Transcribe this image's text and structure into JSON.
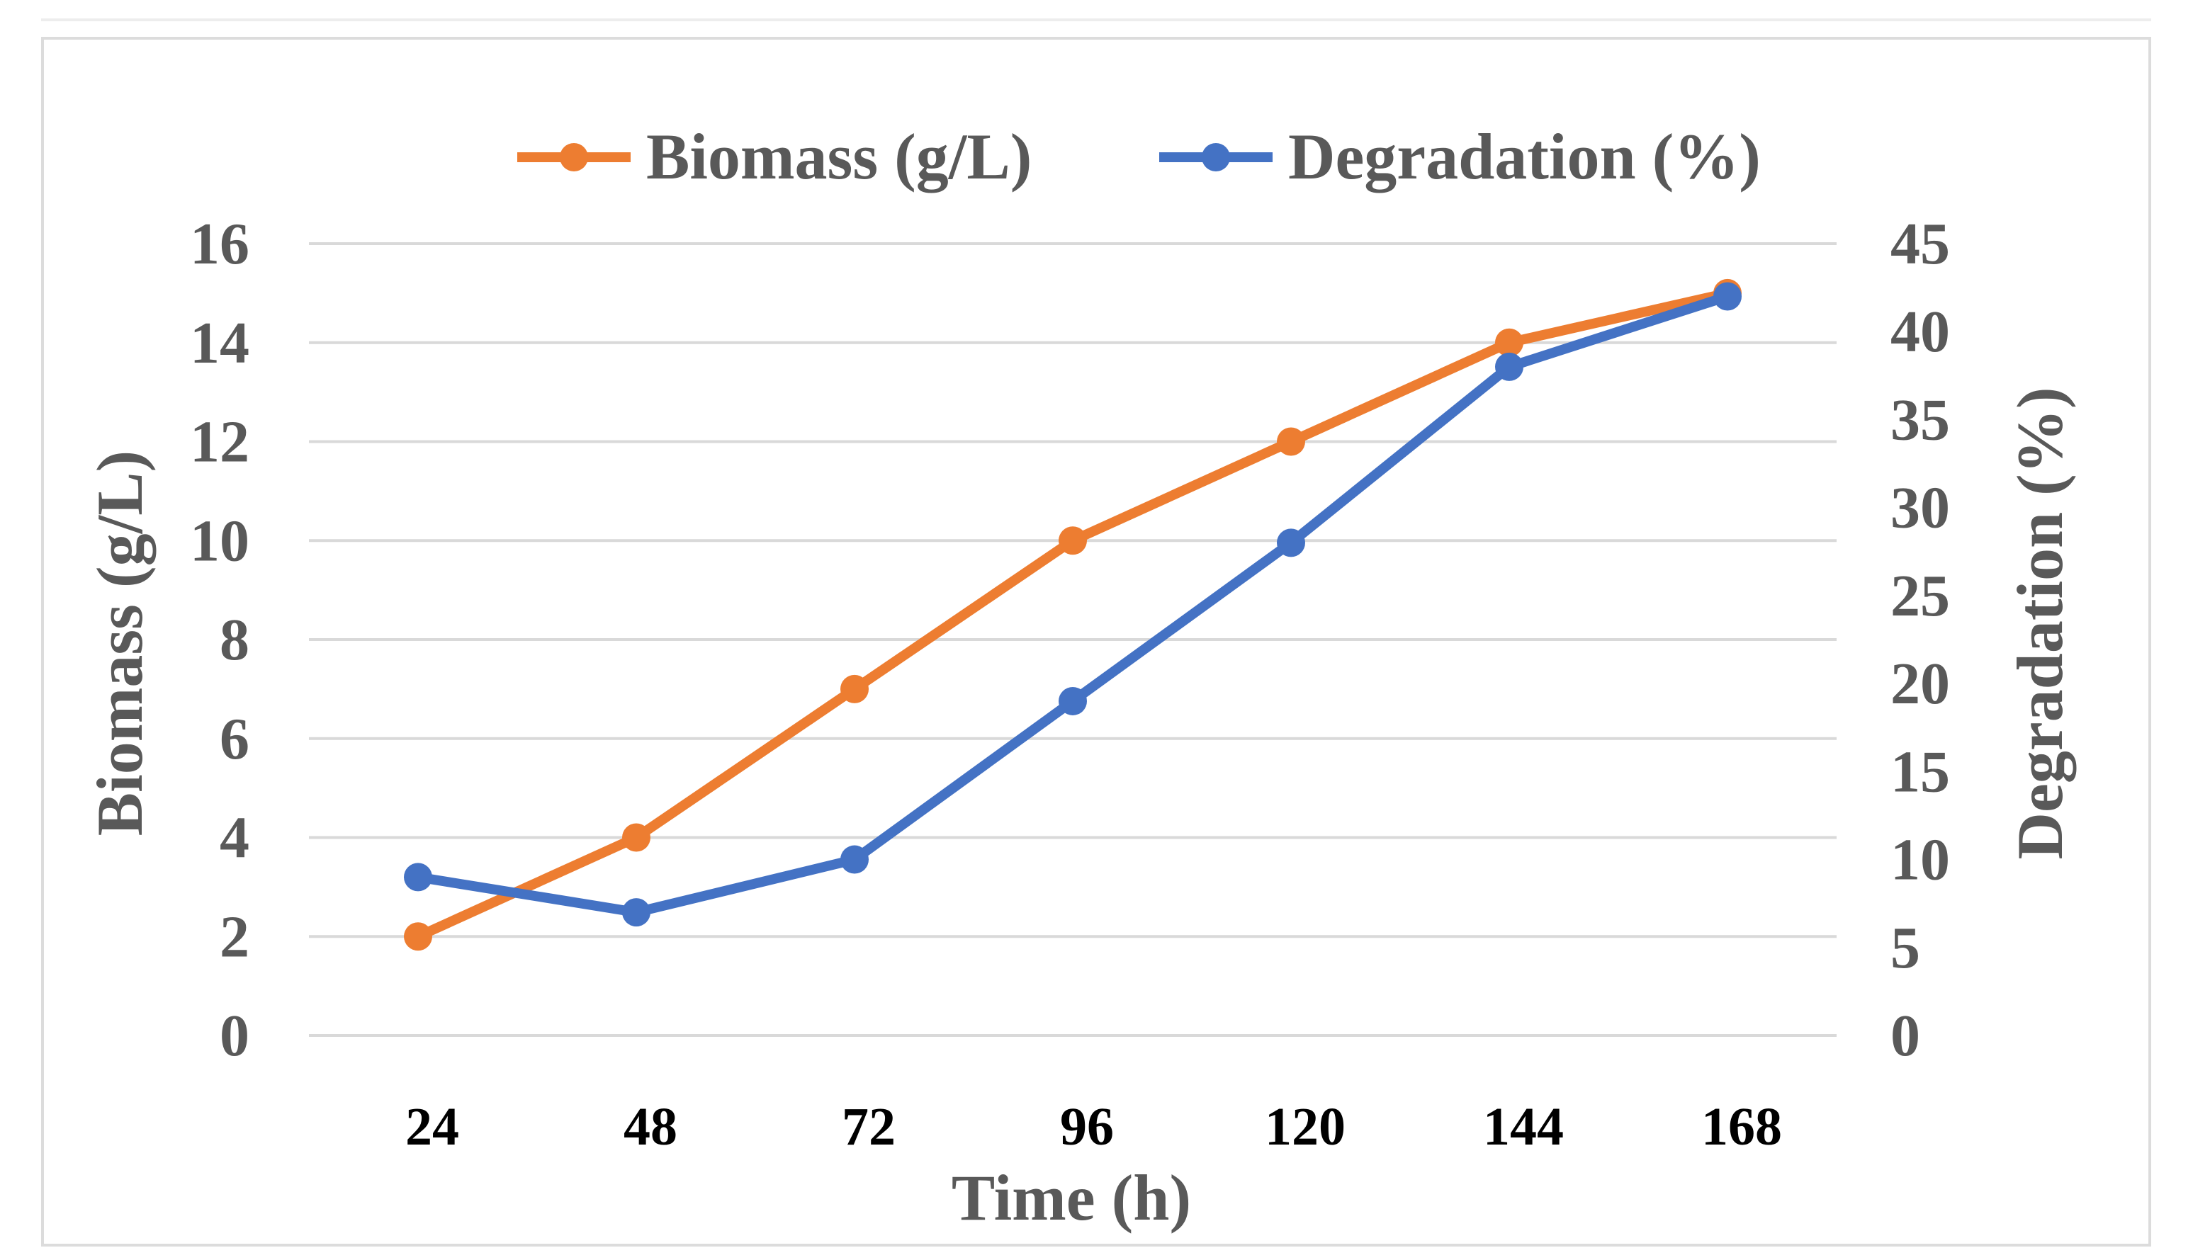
{
  "chart_data": {
    "type": "line",
    "title": "",
    "categories": [
      "24",
      "48",
      "72",
      "96",
      "120",
      "144",
      "168"
    ],
    "xlabel": "Time (h)",
    "ylabel": "Biomass (g/L)",
    "y2label": "Degradation (%)",
    "ylim": [
      0,
      16
    ],
    "y2lim": [
      0,
      45
    ],
    "yticks": [
      "0",
      "2",
      "4",
      "6",
      "8",
      "10",
      "12",
      "14",
      "16"
    ],
    "y2ticks": [
      "0",
      "5",
      "10",
      "15",
      "20",
      "25",
      "30",
      "35",
      "40",
      "45"
    ],
    "grid": true,
    "legend_position": "top",
    "series": [
      {
        "name": "Biomass (g/L)",
        "axis": "left",
        "color": "#ED7D31",
        "values": [
          2,
          4,
          7,
          10,
          12,
          14,
          15
        ]
      },
      {
        "name": "Degradation (%)",
        "axis": "right",
        "color": "#4472C4",
        "values": [
          9,
          7,
          10,
          19,
          28,
          38,
          42
        ]
      }
    ]
  }
}
